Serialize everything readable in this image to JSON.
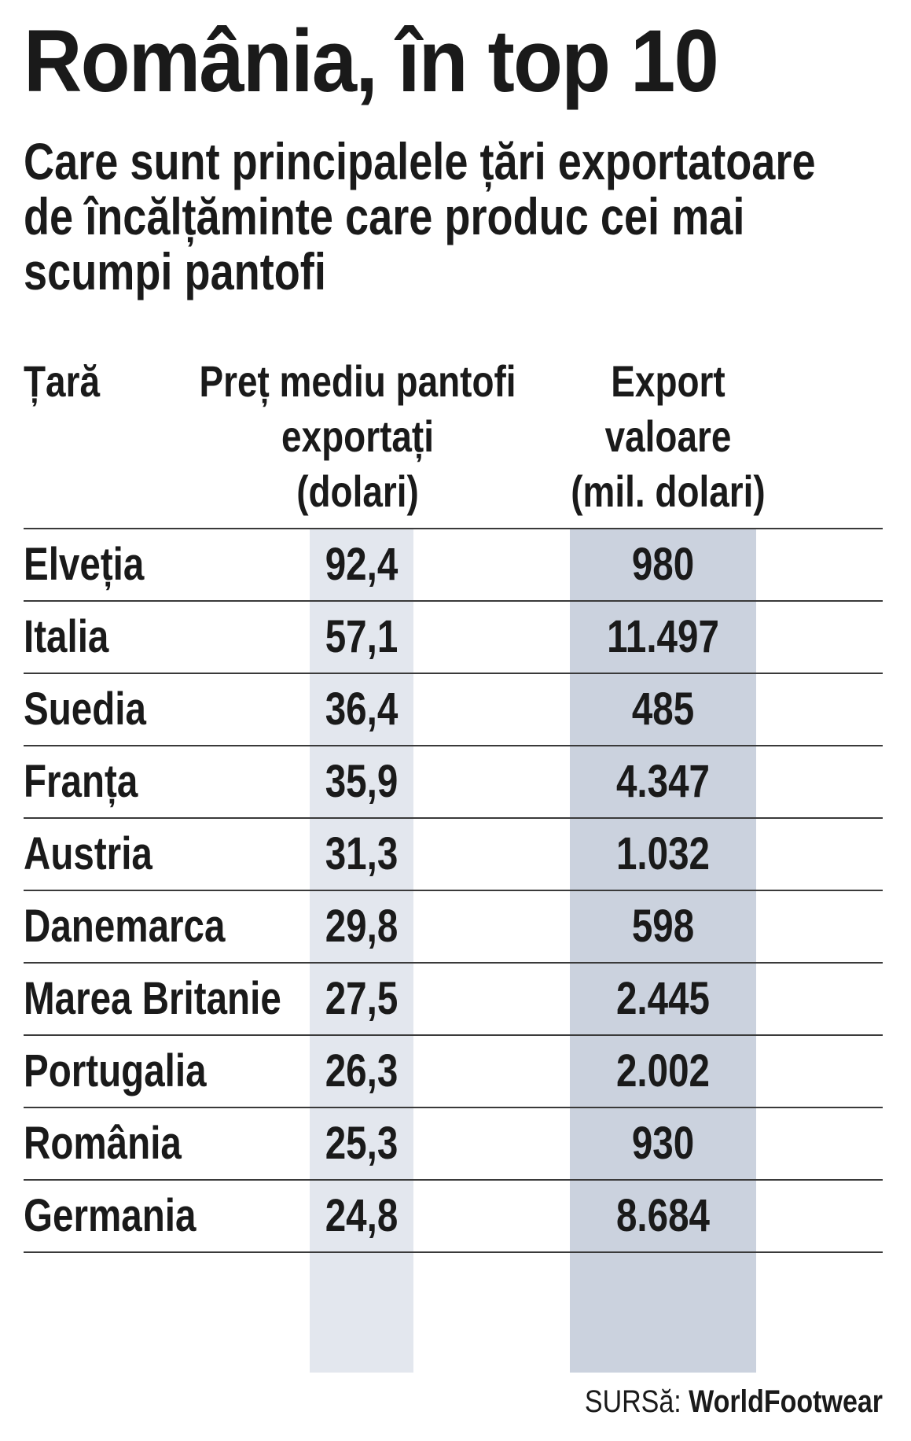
{
  "chart_data": {
    "type": "table",
    "title": "România, în top 10",
    "subtitle": [
      "Care sunt principalele țări exportatoare",
      "de încălțăminte care produc cei mai",
      "scumpi pantofi"
    ],
    "columns": [
      [
        "Țară"
      ],
      [
        "Preț mediu pantofi",
        "exportați",
        "(dolari)"
      ],
      [
        "Export",
        "valoare",
        "(mil. dolari)"
      ]
    ],
    "rows": [
      [
        "Elveția",
        "92,4",
        "980"
      ],
      [
        "Italia",
        "57,1",
        "11.497"
      ],
      [
        "Suedia",
        "36,4",
        "485"
      ],
      [
        "Franța",
        "35,9",
        "4.347"
      ],
      [
        "Austria",
        "31,3",
        "1.032"
      ],
      [
        "Danemarca",
        "29,8",
        "598"
      ],
      [
        "Marea Britanie",
        "27,5",
        "2.445"
      ],
      [
        "Portugalia",
        "26,3",
        "2.002"
      ],
      [
        "România",
        "25,3",
        "930"
      ],
      [
        "Germania",
        "24,8",
        "8.684"
      ]
    ],
    "source_label": "SURSă:",
    "source_name": "WorldFootwear",
    "colors": {
      "price_column_band": "#e3e7ee",
      "export_column_band": "#cbd2de",
      "text": "#1a1a1a",
      "rules": "#3a3a3a"
    }
  }
}
